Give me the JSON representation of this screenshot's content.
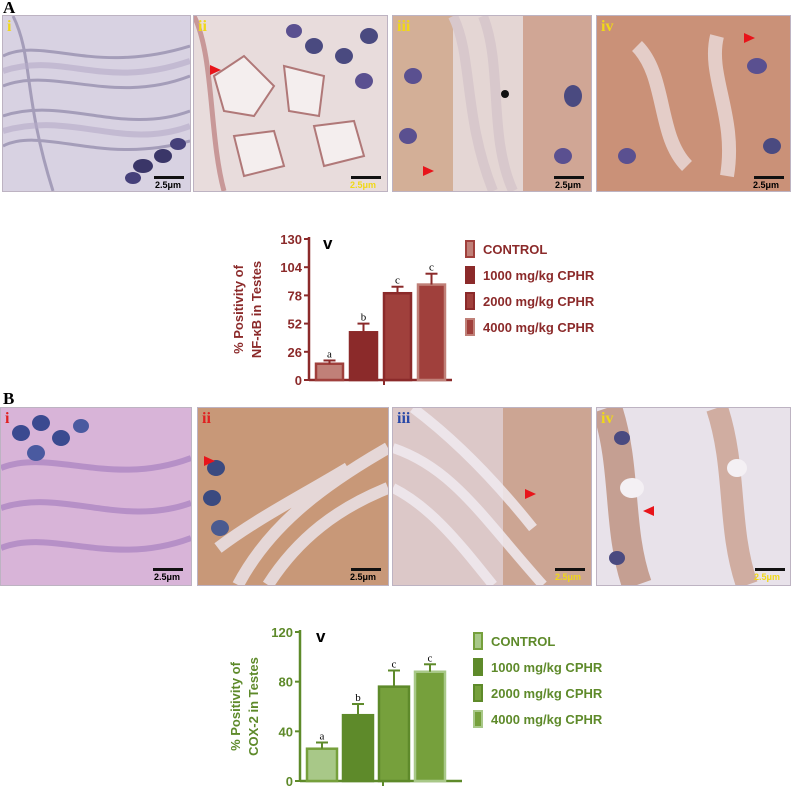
{
  "figure": {
    "panel_A": {
      "label": "A",
      "micrographs": [
        {
          "numeral": "i",
          "scale": "2.5μm"
        },
        {
          "numeral": "ii",
          "scale": "2.5μm"
        },
        {
          "numeral": "iii",
          "scale": "2.5μm"
        },
        {
          "numeral": "iv",
          "scale": "2.5μm"
        }
      ]
    },
    "panel_B": {
      "label": "B",
      "micrographs": [
        {
          "numeral": "i",
          "scale": "2.5μm"
        },
        {
          "numeral": "ii",
          "scale": "2.5μm"
        },
        {
          "numeral": "iii",
          "scale": "2.5μm"
        },
        {
          "numeral": "iv",
          "scale": "2.5μm"
        }
      ]
    },
    "colors": {
      "nfkb_dark": "#8b2a2a",
      "nfkb_mid": "#a0403c",
      "nfkb_light": "#c08078",
      "cox_dark": "#5e8a2a",
      "cox_mid": "#76a03c",
      "cox_light": "#a8c888",
      "numeral_A": "#f0d818",
      "numeral_B_i": "#e02020",
      "numeral_B_ii": "#e02020",
      "numeral_B_iii": "#2848a8",
      "numeral_B_iv": "#f0d818"
    }
  },
  "chart_data": [
    {
      "type": "bar",
      "panel_label": "v",
      "ylabel_line1": "% Positivity of",
      "ylabel_line2": "NF-κB in Testes",
      "yticks": [
        "0",
        "26",
        "52",
        "78",
        "104",
        "130"
      ],
      "ylim": [
        0,
        130
      ],
      "grid": false,
      "legend_position": "right",
      "categories": [
        "CONTROL",
        "1000 mg/kg CPHR",
        "2000 mg/kg CPHR",
        "4000 mg/kg CPHR"
      ],
      "values": [
        15,
        44,
        80,
        88
      ],
      "errors": [
        3,
        8,
        6,
        10
      ],
      "significance": [
        "a",
        "b",
        "c",
        "c"
      ]
    },
    {
      "type": "bar",
      "panel_label": "v",
      "ylabel_line1": "% Positivity of",
      "ylabel_line2": "COX-2 in Testes",
      "yticks": [
        "0",
        "40",
        "80",
        "120"
      ],
      "ylim": [
        0,
        120
      ],
      "grid": false,
      "legend_position": "right",
      "categories": [
        "CONTROL",
        "1000 mg/kg CPHR",
        "2000 mg/kg CPHR",
        "4000 mg/kg CPHR"
      ],
      "values": [
        26,
        53,
        76,
        88
      ],
      "errors": [
        5,
        9,
        13,
        6
      ],
      "significance": [
        "a",
        "b",
        "c",
        "c"
      ]
    }
  ]
}
